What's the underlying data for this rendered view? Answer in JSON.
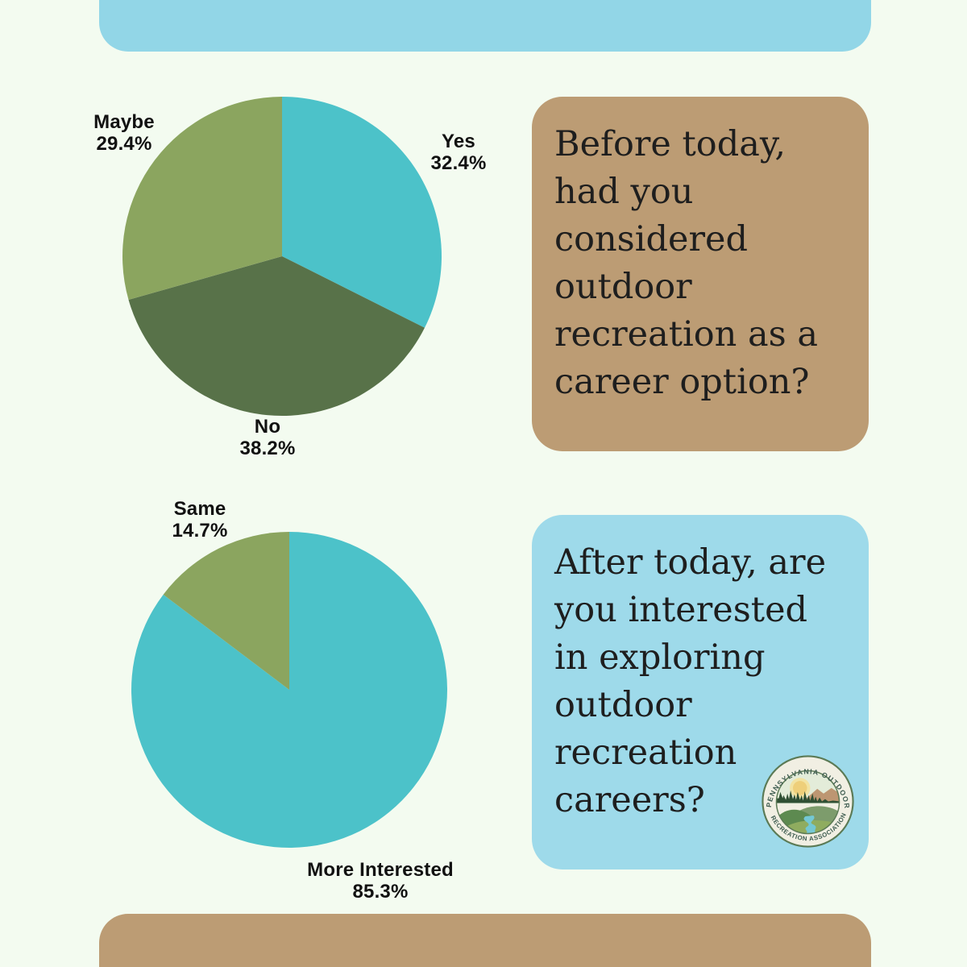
{
  "page": {
    "background_color": "#f3fbf0"
  },
  "accents": {
    "top_bar_color": "#92d6e7",
    "bottom_bar_color": "#bc9c74"
  },
  "cards": [
    {
      "id": "before",
      "background_color": "#bc9c74",
      "text": "Before today,\nhad you\nconsidered\noutdoor\nrecreation as a\ncareer option?"
    },
    {
      "id": "after",
      "background_color": "#9edaea",
      "text": "After today, are\nyou interested\nin exploring\noutdoor\nrecreation\ncareers?"
    }
  ],
  "chart_data": [
    {
      "type": "pie",
      "question": "Before today, had you considered outdoor recreation as a career option?",
      "labels": [
        "Yes",
        "No",
        "Maybe"
      ],
      "values": [
        32.4,
        38.2,
        29.4
      ],
      "display_values": [
        "32.4%",
        "38.2%",
        "29.4%"
      ],
      "colors": [
        "#4cc2c9",
        "#587249",
        "#8ba55f"
      ],
      "start_angle": "12 o'clock",
      "direction": "clockwise",
      "legend": "none"
    },
    {
      "type": "pie",
      "question": "After today, are you interested in exploring outdoor recreation careers?",
      "labels": [
        "More Interested",
        "Same"
      ],
      "values": [
        85.3,
        14.7
      ],
      "display_values": [
        "85.3%",
        "14.7%"
      ],
      "colors": [
        "#4cc2c9",
        "#8ba55f"
      ],
      "start_angle": "12 o'clock",
      "direction": "clockwise",
      "legend": "none"
    }
  ],
  "logo": {
    "arc_top_text": "PENNSYLVANIA OUTDOOR",
    "arc_bottom_text": "RECREATION ASSOCIATION"
  }
}
